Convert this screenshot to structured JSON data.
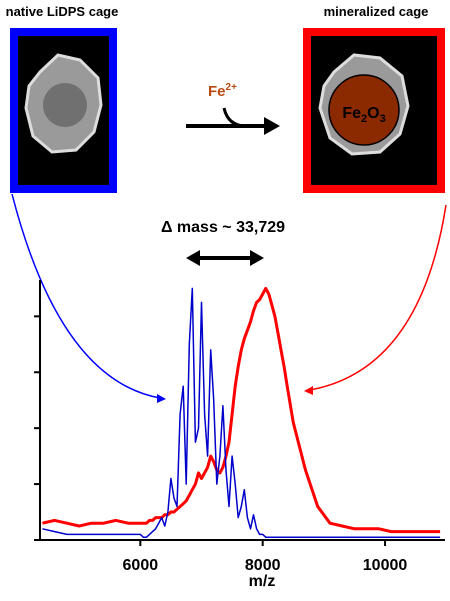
{
  "chart_data": {
    "type": "line",
    "annotations": {
      "left_title": "native LiDPS cage",
      "right_title": "mineralized cage",
      "reactant": {
        "base": "Fe",
        "sup": "2+"
      },
      "product": {
        "base1": "Fe",
        "sub1": "2",
        "base2": "O",
        "sub2": "3"
      },
      "delta": "Δ mass ~ 33,729"
    },
    "x_label": "m/z",
    "x": [
      4400,
      4600,
      4800,
      5000,
      5200,
      5400,
      5600,
      5800,
      6000,
      6050,
      6100,
      6150,
      6200,
      6250,
      6300,
      6350,
      6400,
      6450,
      6500,
      6550,
      6600,
      6650,
      6700,
      6750,
      6800,
      6850,
      6900,
      6950,
      7000,
      7050,
      7100,
      7150,
      7200,
      7250,
      7300,
      7350,
      7400,
      7450,
      7500,
      7550,
      7600,
      7650,
      7700,
      7750,
      7800,
      7850,
      7900,
      7950,
      8000,
      8050,
      8100,
      8150,
      8200,
      8250,
      8300,
      8350,
      8400,
      8500,
      8700,
      8900,
      9100,
      9300,
      9500,
      9700,
      9900,
      10100,
      10300,
      10500,
      10700,
      10900
    ],
    "series": [
      {
        "color": "#ff0000",
        "width": 3,
        "values": [
          6,
          7,
          6,
          5,
          6,
          6,
          7,
          6,
          6,
          6,
          6,
          7,
          7,
          8,
          8,
          8,
          9,
          9,
          10,
          10,
          11,
          12,
          13,
          14,
          16,
          18,
          20,
          24,
          22,
          24,
          26,
          30,
          28,
          25,
          24,
          26,
          30,
          35,
          45,
          55,
          62,
          68,
          72,
          75,
          78,
          82,
          85,
          86,
          88,
          90,
          88,
          84,
          80,
          74,
          68,
          62,
          55,
          42,
          25,
          12,
          6,
          5,
          4,
          4,
          4,
          3,
          3,
          3,
          3,
          3
        ]
      },
      {
        "color": "#0000cc",
        "width": 1.5,
        "values": [
          4,
          3,
          2,
          2,
          2,
          2,
          2,
          2,
          2,
          1,
          1,
          2,
          3,
          4,
          6,
          8,
          5,
          10,
          22,
          15,
          12,
          45,
          55,
          20,
          70,
          90,
          35,
          40,
          85,
          45,
          30,
          68,
          50,
          20,
          30,
          48,
          25,
          12,
          30,
          20,
          8,
          12,
          18,
          8,
          4,
          9,
          4,
          2,
          2,
          1,
          1,
          1,
          1,
          1,
          1,
          1,
          1,
          1,
          1,
          1,
          1,
          1,
          1,
          1,
          1,
          1,
          1,
          1,
          1,
          1
        ]
      }
    ],
    "xlim": [
      4360,
      10980
    ],
    "xticks": [
      {
        "value": 6000,
        "label": "6000"
      },
      {
        "value": 8000,
        "label": "8000"
      },
      {
        "value": 10000,
        "label": "10000"
      }
    ],
    "ylim": [
      0,
      93
    ],
    "yticks": [
      0,
      20,
      40,
      60,
      80
    ]
  }
}
